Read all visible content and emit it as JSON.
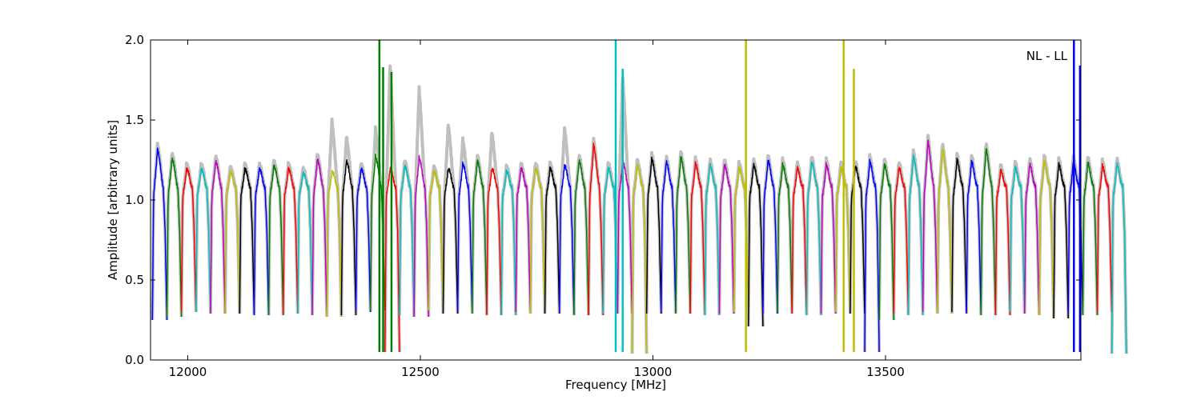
{
  "chart_data": {
    "type": "line",
    "title": "",
    "xlabel": "Frequency [MHz]",
    "ylabel": "Amplitude [arbitrary units]",
    "xlim": [
      11920,
      13920
    ],
    "ylim": [
      0.0,
      2.0
    ],
    "xticks": [
      12000,
      12500,
      13000,
      13500
    ],
    "yticks": [
      0.0,
      0.5,
      1.0,
      1.5,
      2.0
    ],
    "xtick_labels": [
      "12000",
      "12500",
      "13000",
      "13500"
    ],
    "ytick_labels": [
      "0.0",
      "0.5",
      "1.0",
      "1.5",
      "2.0"
    ],
    "grid": false,
    "legend": "none",
    "annotation": "NL - LL",
    "band_width_mhz": 31.25,
    "band_start_mhz": 11924,
    "background_series_color": "#bfbfbf",
    "band_colors": [
      "#0000ff",
      "#008000",
      "#ff0000",
      "#00bfbf",
      "#bf00bf",
      "#bfbf00",
      "#000000"
    ],
    "band_peaks": [
      1.33,
      1.27,
      1.2,
      1.2,
      1.25,
      1.18,
      1.2,
      1.2,
      1.22,
      1.2,
      1.17,
      1.26,
      1.18,
      1.25,
      1.2,
      1.28,
      1.2,
      1.22,
      1.27,
      1.18,
      1.2,
      1.23,
      1.25,
      1.2,
      1.18,
      1.2,
      1.2,
      1.2,
      1.22,
      1.25,
      1.35,
      1.2,
      1.25,
      1.22,
      1.26,
      1.24,
      1.27,
      1.23,
      1.22,
      1.22,
      1.2,
      1.22,
      1.25,
      1.22,
      1.2,
      1.24,
      1.22,
      1.2,
      1.21,
      1.24,
      1.22,
      1.2,
      1.27,
      1.37,
      1.32,
      1.25,
      1.24,
      1.32,
      1.18,
      1.2,
      1.22,
      1.24,
      1.22,
      1.24,
      1.23,
      1.21,
      1.22
    ],
    "band_troughs": [
      0.25,
      0.27,
      0.3,
      0.3,
      0.29,
      0.29,
      0.29,
      0.28,
      0.28,
      0.29,
      0.29,
      0.28,
      0.27,
      0.28,
      0.3,
      0.31,
      0.05,
      0.28,
      0.27,
      0.31,
      0.29,
      0.3,
      0.29,
      0.28,
      0.28,
      0.3,
      0.29,
      0.29,
      0.29,
      0.28,
      0.28,
      0.29,
      0.29,
      0.04,
      0.29,
      0.3,
      0.29,
      0.29,
      0.28,
      0.29,
      0.3,
      0.21,
      0.29,
      0.3,
      0.29,
      0.28,
      0.29,
      0.3,
      0.29,
      0.05,
      0.25,
      0.29,
      0.28,
      0.3,
      0.29,
      0.3,
      0.29,
      0.28,
      0.28,
      0.3,
      0.29,
      0.28,
      0.26,
      0.29,
      0.28,
      0.3,
      0.04
    ],
    "rfi_spikes": [
      {
        "x": 12412,
        "y": 2.0,
        "color": "#008000"
      },
      {
        "x": 12420,
        "y": 1.83,
        "color": "#008000"
      },
      {
        "x": 12438,
        "y": 1.8,
        "color": "#008000"
      },
      {
        "x": 12920,
        "y": 2.0,
        "color": "#00bfbf"
      },
      {
        "x": 12935,
        "y": 1.82,
        "color": "#00bfbf"
      },
      {
        "x": 13200,
        "y": 2.0,
        "color": "#bfbf00"
      },
      {
        "x": 13410,
        "y": 2.0,
        "color": "#bfbf00"
      },
      {
        "x": 13432,
        "y": 1.82,
        "color": "#bfbf00"
      },
      {
        "x": 13905,
        "y": 2.0,
        "color": "#0000ff"
      },
      {
        "x": 13918,
        "y": 1.84,
        "color": "#0000ff"
      }
    ],
    "background_bumps": [
      {
        "x": 12320,
        "y": 1.5
      },
      {
        "x": 12360,
        "y": 1.4
      },
      {
        "x": 12400,
        "y": 1.45
      },
      {
        "x": 12445,
        "y": 1.85
      },
      {
        "x": 12490,
        "y": 1.7
      },
      {
        "x": 12550,
        "y": 1.48
      },
      {
        "x": 12610,
        "y": 1.38
      },
      {
        "x": 12655,
        "y": 1.43
      },
      {
        "x": 12820,
        "y": 1.45
      },
      {
        "x": 12940,
        "y": 1.78
      }
    ]
  }
}
